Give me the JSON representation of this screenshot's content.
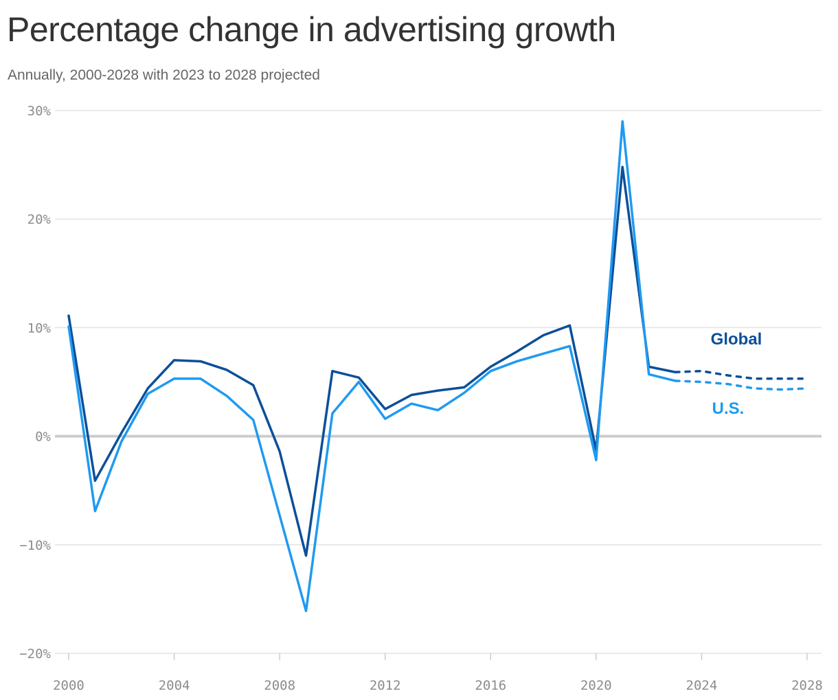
{
  "header": {
    "title": "Percentage change in advertising growth",
    "subtitle": "Annually, 2000-2028 with 2023 to 2028 projected"
  },
  "colors": {
    "global": "#0b4f99",
    "us": "#1f9af0",
    "grid": "#e3e3e3",
    "zero": "#cccccc"
  },
  "chart_data": {
    "type": "line",
    "title": "Percentage change in advertising growth",
    "subtitle": "Annually, 2000-2028 with 2023 to 2028 projected",
    "xlabel": "",
    "ylabel": "",
    "xlim": [
      2000,
      2028
    ],
    "ylim": [
      -20,
      30
    ],
    "y_ticks": [
      -20,
      -10,
      0,
      10,
      20,
      30
    ],
    "y_tick_labels": [
      "−20%",
      "−10%",
      "0%",
      "10%",
      "20%",
      "30%"
    ],
    "x_ticks": [
      2000,
      2004,
      2008,
      2012,
      2016,
      2020,
      2024,
      2028
    ],
    "x_tick_labels": [
      "2000",
      "2004",
      "2008",
      "2012",
      "2016",
      "2020",
      "2024",
      "2028"
    ],
    "grid": true,
    "projected_from": 2023,
    "x": [
      2000,
      2001,
      2002,
      2003,
      2004,
      2005,
      2006,
      2007,
      2008,
      2009,
      2010,
      2011,
      2012,
      2013,
      2014,
      2015,
      2016,
      2017,
      2018,
      2019,
      2020,
      2021,
      2022,
      2023,
      2024,
      2025,
      2026,
      2027,
      2028
    ],
    "series": [
      {
        "name": "Global",
        "color": "#0b4f99",
        "values": [
          11.1,
          -4.1,
          0.3,
          4.4,
          7.0,
          6.9,
          6.1,
          4.7,
          -1.4,
          -11.0,
          6.0,
          5.4,
          2.5,
          3.8,
          4.2,
          4.5,
          6.4,
          7.8,
          9.3,
          10.2,
          -1.3,
          24.8,
          6.4,
          5.9,
          6.0,
          5.6,
          5.3,
          5.3,
          5.3
        ]
      },
      {
        "name": "U.S.",
        "color": "#1f9af0",
        "values": [
          10.1,
          -6.9,
          -0.5,
          3.9,
          5.3,
          5.3,
          3.7,
          1.5,
          -7.3,
          -16.1,
          2.1,
          5.0,
          1.6,
          3.0,
          2.4,
          4.0,
          6.0,
          6.9,
          7.6,
          8.3,
          -2.2,
          29.0,
          5.7,
          5.1,
          5.0,
          4.8,
          4.4,
          4.3,
          4.4
        ]
      }
    ],
    "series_labels": [
      {
        "text": "Global",
        "series": "Global"
      },
      {
        "text": "U.S.",
        "series": "U.S."
      }
    ]
  }
}
